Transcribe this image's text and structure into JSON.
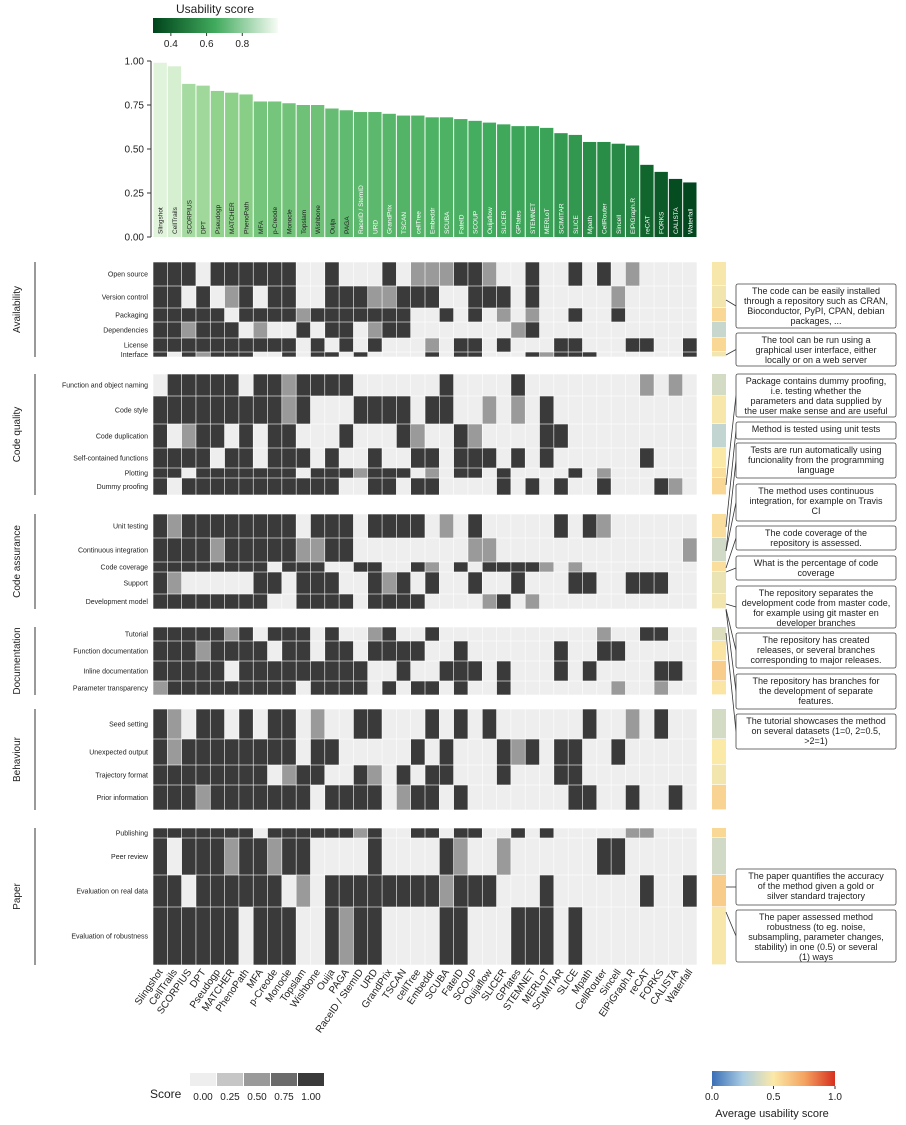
{
  "chart_data": {
    "type": "bar+heatmap",
    "usability_legend": {
      "title": "Usability score",
      "ticks": [
        "0.4",
        "0.6",
        "0.8"
      ],
      "range": [
        0.3,
        1.0
      ]
    },
    "bar": {
      "yticks": [
        "0.00",
        "0.25",
        "0.50",
        "0.75",
        "1.00"
      ],
      "ylim": [
        0,
        1
      ],
      "methods": [
        "Slingshot",
        "CellTrails",
        "SCORPIUS",
        "DPT",
        "Pseudogp",
        "MATCHER",
        "PhenoPath",
        "MFA",
        "p-Creode",
        "Monocle",
        "Topslam",
        "Wishbone",
        "Ouija",
        "PAGA",
        "RaceID / StemID",
        "URD",
        "GrandPrix",
        "TSCAN",
        "cellTree",
        "Embeddr",
        "SCUBA",
        "FateID",
        "SCOUP",
        "Ouijaflow",
        "SLICER",
        "GPfates",
        "STEMNET",
        "MERLoT",
        "SCIMITAR",
        "SLICE",
        "Mpath",
        "CellRouter",
        "Sincell",
        "ElPiGraph.R",
        "reCAT",
        "FORKS",
        "CALISTA",
        "Waterfall"
      ],
      "values": [
        0.99,
        0.97,
        0.87,
        0.86,
        0.83,
        0.82,
        0.81,
        0.77,
        0.77,
        0.76,
        0.75,
        0.75,
        0.73,
        0.72,
        0.71,
        0.71,
        0.7,
        0.69,
        0.69,
        0.68,
        0.68,
        0.67,
        0.66,
        0.65,
        0.64,
        0.63,
        0.63,
        0.62,
        0.59,
        0.58,
        0.54,
        0.54,
        0.53,
        0.52,
        0.41,
        0.37,
        0.33,
        0.31
      ]
    },
    "categories": [
      {
        "name": "Availability",
        "criteria": [
          "Open source",
          "Version control",
          "Packaging",
          "Dependencies",
          "License",
          "Interface"
        ]
      },
      {
        "name": "Code quality",
        "criteria": [
          "Function and object naming",
          "Code style",
          "Code duplication",
          "Self-contained functions",
          "Plotting",
          "Dummy proofing"
        ]
      },
      {
        "name": "Code assurance",
        "criteria": [
          "Unit testing",
          "Continuous integration",
          "Code coverage",
          "Support",
          "Development model"
        ]
      },
      {
        "name": "Documentation",
        "criteria": [
          "Tutorial",
          "Function documentation",
          "Inline documentation",
          "Parameter transparency"
        ]
      },
      {
        "name": "Behaviour",
        "criteria": [
          "Seed setting",
          "Unexpected output",
          "Trajectory format",
          "Prior information"
        ]
      },
      {
        "name": "Paper",
        "criteria": [
          "Publishing",
          "Peer review",
          "Evaluation on real data",
          "Evaluation of robustness"
        ]
      }
    ],
    "annotations": [
      "The code can be easily installed through a repository such as CRAN, Bioconductor, PyPI, CPAN, debian packages, ...",
      "The tool can be run using a graphical user interface, either locally or on a web server",
      "Package contains dummy proofing, i.e. testing whether the parameters and data supplied by the user make sense and are useful",
      "Method is tested using unit tests",
      "Tests are run automatically using funcionality from the programming language",
      "The method uses continuous integration, for example on Travis CI",
      "The code coverage of the repository is assessed.",
      "What is the percentage of code coverage",
      "The repository separates the development code from master code, for example using git master en developer branches",
      "The repository has created releases, or several branches corresponding to major releases.",
      "The repository has branches for the development of separate features.",
      "The tutorial showcases the method on several datasets (1=0, 2=0.5, >2=1)",
      "The paper quantifies the accuracy of the method given a gold or silver standard trajectory",
      "The paper assessed method robustness (to eg. noise, subsampling, parameter changes, stability) in one (0.5) or several (1) ways"
    ],
    "score_legend": {
      "title": "Score",
      "levels": [
        "0.00",
        "0.25",
        "0.50",
        "0.75",
        "1.00"
      ],
      "colors": [
        "#eeeeee",
        "#c6c6c6",
        "#9a9a9a",
        "#6b6b6b",
        "#3a3a3a"
      ]
    },
    "avg_legend": {
      "title": "Average usability score",
      "ticks": [
        "0.0",
        "0.5",
        "1.0"
      ]
    }
  }
}
